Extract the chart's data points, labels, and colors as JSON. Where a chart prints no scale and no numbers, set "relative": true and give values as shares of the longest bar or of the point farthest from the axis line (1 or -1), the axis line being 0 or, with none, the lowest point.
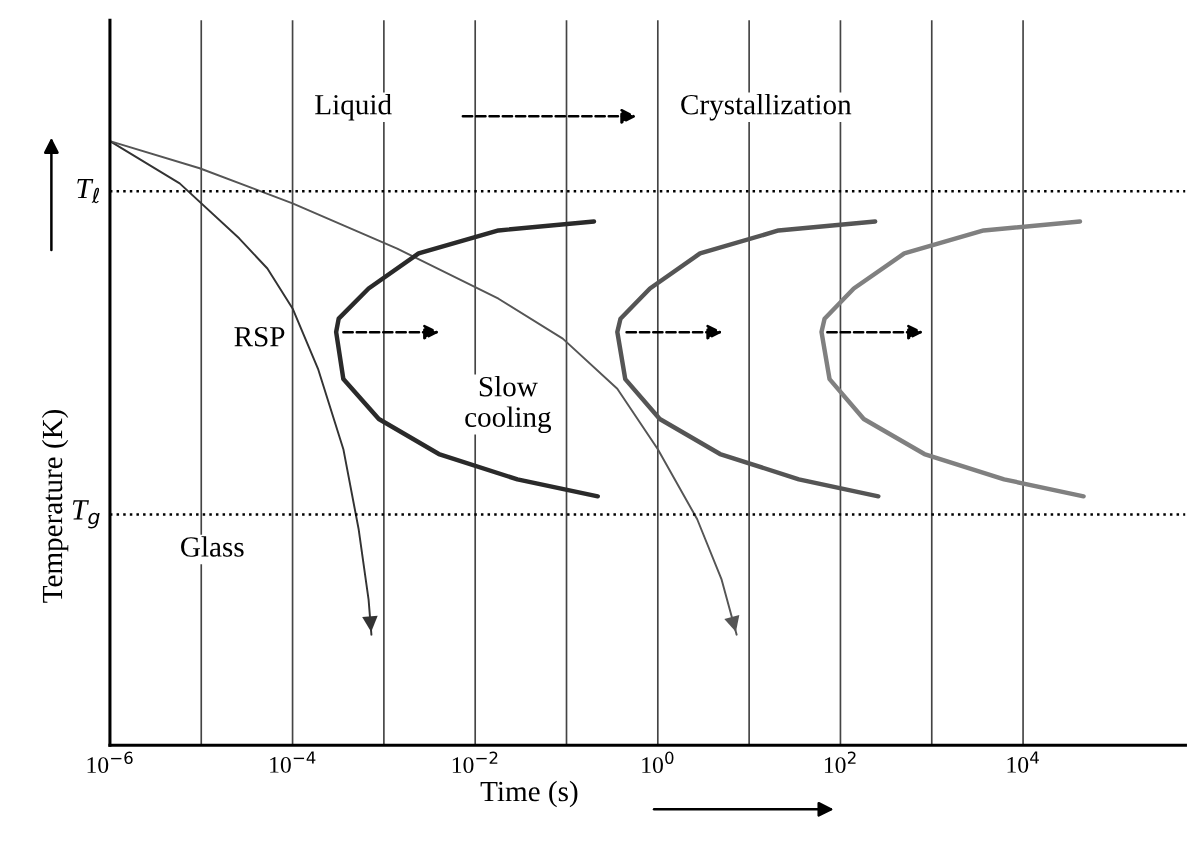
{
  "chart_data": {
    "type": "line",
    "relative": true,
    "log": "x",
    "grid": "x",
    "marker": "none",
    "line_style": "solid",
    "xlabel": "Time (s)",
    "ylabel": "Temperature (K)",
    "xlim": [
      1e-06,
      600000
    ],
    "xticks": [
      {
        "value": 1e-06,
        "label": "10$^{−6}$"
      },
      {
        "value": 1e-05,
        "label": null
      },
      {
        "value": 0.0001,
        "label": "10$^{−4}$"
      },
      {
        "value": 0.001,
        "label": null
      },
      {
        "value": 0.01,
        "label": "10$^{−2}$"
      },
      {
        "value": 0.1,
        "label": null
      },
      {
        "value": 1,
        "label": "10$^{0}$"
      },
      {
        "value": 10,
        "label": null
      },
      {
        "value": 100,
        "label": "10$^{2}$"
      },
      {
        "value": 1000,
        "label": null
      },
      {
        "value": 10000,
        "label": "10$^{4}$"
      }
    ],
    "ref_lines": [
      {
        "axis": "y",
        "value": 0.917,
        "label": "T$_{ℓ}$",
        "color": "#000000",
        "line_style": "dotted"
      },
      {
        "axis": "y",
        "value": 0.382,
        "label": "T$_{g}$",
        "color": "#000000",
        "line_style": "dotted"
      }
    ],
    "annotations": [
      "Liquid",
      "Crystallization",
      "RSP",
      "Slow\ncooling",
      "Glass"
    ],
    "series": [
      {
        "color": "#333333",
        "x": [
          1e-06,
          5.8e-06,
          2.6e-05,
          5.3e-05,
          0.0001,
          0.00019,
          0.00036,
          0.00053,
          0.00068,
          0.00073
        ],
        "values": [
          1.0,
          0.93,
          0.839,
          0.789,
          0.723,
          0.623,
          0.49,
          0.357,
          0.241,
          0.183
        ]
      },
      {
        "color": "#555555",
        "x": [
          1e-06,
          9.6e-06,
          0.0001,
          0.0014,
          0.018,
          0.091,
          0.36,
          1,
          2.7,
          5.0,
          7.3
        ],
        "values": [
          1.0,
          0.955,
          0.897,
          0.822,
          0.739,
          0.673,
          0.59,
          0.49,
          0.374,
          0.274,
          0.183
        ]
      },
      {
        "color": "#2a2a2a",
        "x": [
          0.2,
          0.018,
          0.0024,
          0.00068,
          0.00032,
          0.0003,
          0.00036,
          0.00088,
          0.004,
          0.029,
          0.22
        ],
        "values": [
          0.867,
          0.852,
          0.814,
          0.756,
          0.706,
          0.684,
          0.606,
          0.54,
          0.482,
          0.44,
          0.412
        ]
      },
      {
        "color": "#555555",
        "x": [
          240,
          21,
          2.9,
          0.82,
          0.39,
          0.36,
          0.44,
          1.05,
          4.8,
          35,
          260
        ],
        "values": [
          0.867,
          0.852,
          0.814,
          0.756,
          0.706,
          0.684,
          0.606,
          0.54,
          0.482,
          0.44,
          0.412
        ]
      },
      {
        "color": "#808080",
        "x": [
          42000,
          3700,
          500,
          140,
          67,
          62,
          76,
          180,
          830,
          6200,
          46000
        ],
        "values": [
          0.867,
          0.852,
          0.814,
          0.756,
          0.706,
          0.684,
          0.606,
          0.54,
          0.482,
          0.44,
          0.412
        ]
      }
    ]
  }
}
